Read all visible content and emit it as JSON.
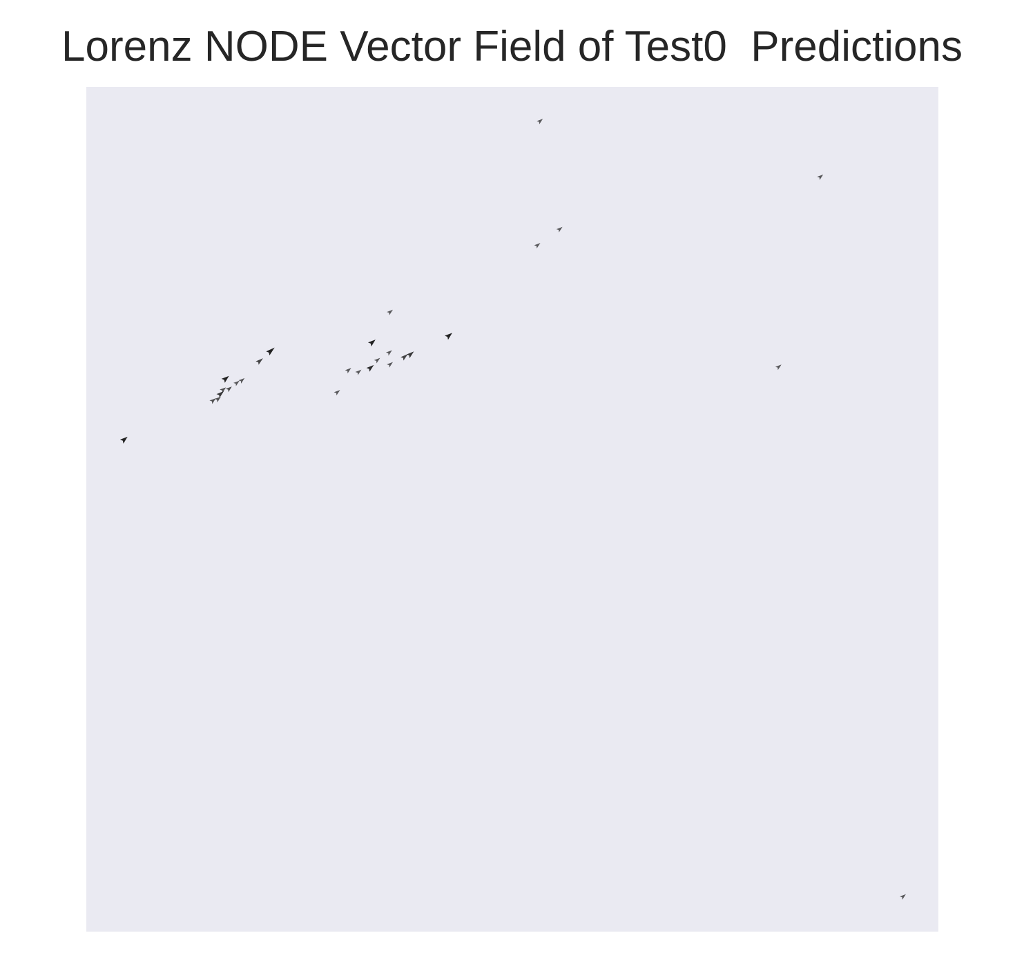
{
  "chart_data": {
    "type": "scatter",
    "subtype": "quiver",
    "title": "Lorenz NODE Vector Field of Test0  Predictions",
    "xlabel": "",
    "ylabel": "",
    "axes_visible": false,
    "grid": false,
    "xlim": [
      0,
      100
    ],
    "ylim": [
      0,
      100
    ],
    "arrow_color": "#222222",
    "background_color": "#eaeaf2",
    "vectors": [
      {
        "x": 53.3,
        "y": 96.0,
        "dx": 0.5,
        "dy": 0.4,
        "strength": 0.5
      },
      {
        "x": 86.2,
        "y": 89.4,
        "dx": 0.5,
        "dy": 0.4,
        "strength": 0.5
      },
      {
        "x": 55.6,
        "y": 83.2,
        "dx": 0.5,
        "dy": 0.4,
        "strength": 0.5
      },
      {
        "x": 53.0,
        "y": 81.3,
        "dx": 0.5,
        "dy": 0.4,
        "strength": 0.5
      },
      {
        "x": 35.7,
        "y": 73.4,
        "dx": 0.5,
        "dy": 0.4,
        "strength": 0.5
      },
      {
        "x": 42.6,
        "y": 70.6,
        "dx": 0.6,
        "dy": 0.5,
        "strength": 1.0
      },
      {
        "x": 33.6,
        "y": 69.8,
        "dx": 0.6,
        "dy": 0.5,
        "strength": 1.0
      },
      {
        "x": 21.7,
        "y": 68.8,
        "dx": 0.7,
        "dy": 0.6,
        "strength": 1.0
      },
      {
        "x": 20.4,
        "y": 67.6,
        "dx": 0.6,
        "dy": 0.5,
        "strength": 0.7
      },
      {
        "x": 38.1,
        "y": 68.4,
        "dx": 0.6,
        "dy": 0.5,
        "strength": 0.8
      },
      {
        "x": 37.4,
        "y": 68.1,
        "dx": 0.6,
        "dy": 0.5,
        "strength": 0.7
      },
      {
        "x": 35.6,
        "y": 68.6,
        "dx": 0.5,
        "dy": 0.4,
        "strength": 0.5
      },
      {
        "x": 34.2,
        "y": 67.7,
        "dx": 0.5,
        "dy": 0.4,
        "strength": 0.5
      },
      {
        "x": 35.7,
        "y": 67.2,
        "dx": 0.5,
        "dy": 0.4,
        "strength": 0.5
      },
      {
        "x": 33.4,
        "y": 66.8,
        "dx": 0.6,
        "dy": 0.5,
        "strength": 0.9
      },
      {
        "x": 32.0,
        "y": 66.3,
        "dx": 0.5,
        "dy": 0.4,
        "strength": 0.5
      },
      {
        "x": 30.8,
        "y": 66.5,
        "dx": 0.5,
        "dy": 0.4,
        "strength": 0.5
      },
      {
        "x": 81.3,
        "y": 66.9,
        "dx": 0.5,
        "dy": 0.4,
        "strength": 0.5
      },
      {
        "x": 16.4,
        "y": 65.5,
        "dx": 0.6,
        "dy": 0.5,
        "strength": 1.0
      },
      {
        "x": 18.3,
        "y": 65.3,
        "dx": 0.5,
        "dy": 0.4,
        "strength": 0.5
      },
      {
        "x": 17.7,
        "y": 65.0,
        "dx": 0.5,
        "dy": 0.4,
        "strength": 0.5
      },
      {
        "x": 16.8,
        "y": 64.3,
        "dx": 0.5,
        "dy": 0.4,
        "strength": 0.6
      },
      {
        "x": 16.1,
        "y": 64.2,
        "dx": 0.5,
        "dy": 0.4,
        "strength": 0.6
      },
      {
        "x": 15.8,
        "y": 63.7,
        "dx": 0.6,
        "dy": 0.5,
        "strength": 0.8
      },
      {
        "x": 15.5,
        "y": 63.1,
        "dx": 0.5,
        "dy": 0.4,
        "strength": 0.6
      },
      {
        "x": 14.9,
        "y": 62.9,
        "dx": 0.5,
        "dy": 0.4,
        "strength": 0.6
      },
      {
        "x": 29.5,
        "y": 63.9,
        "dx": 0.5,
        "dy": 0.4,
        "strength": 0.5
      },
      {
        "x": 4.5,
        "y": 58.3,
        "dx": 0.6,
        "dy": 0.5,
        "strength": 1.0
      },
      {
        "x": 95.9,
        "y": 4.2,
        "dx": 0.5,
        "dy": 0.4,
        "strength": 0.5
      }
    ]
  }
}
